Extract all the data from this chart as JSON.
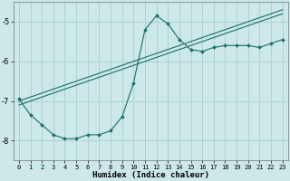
{
  "xlabel": "Humidex (Indice chaleur)",
  "bg_color": "#cce8e8",
  "line_color": "#1a6e6a",
  "grid_color": "#aacece",
  "x_data": [
    0,
    1,
    2,
    3,
    4,
    5,
    6,
    7,
    8,
    9,
    10,
    11,
    12,
    13,
    14,
    15,
    16,
    17,
    18,
    19,
    20,
    21,
    22,
    23
  ],
  "y_curve": [
    -6.95,
    -7.35,
    -7.6,
    -7.85,
    -7.95,
    -7.95,
    -7.85,
    -7.85,
    -7.75,
    -7.4,
    -6.55,
    -5.2,
    -4.85,
    -5.05,
    -5.45,
    -5.7,
    -5.75,
    -5.65,
    -5.6,
    -5.6,
    -5.6,
    -5.65,
    -5.55,
    -5.45
  ],
  "y_line1": [
    -7.0,
    -6.9,
    -6.8,
    -6.7,
    -6.6,
    -6.5,
    -6.4,
    -6.3,
    -6.2,
    -6.1,
    -6.0,
    -5.9,
    -5.8,
    -5.7,
    -5.6,
    -5.5,
    -5.4,
    -5.3,
    -5.2,
    -5.1,
    -5.0,
    -4.9,
    -4.8,
    -4.7
  ],
  "y_line2": [
    -7.1,
    -7.0,
    -6.9,
    -6.8,
    -6.7,
    -6.6,
    -6.5,
    -6.4,
    -6.3,
    -6.2,
    -6.1,
    -6.0,
    -5.9,
    -5.8,
    -5.7,
    -5.6,
    -5.5,
    -5.4,
    -5.3,
    -5.2,
    -5.1,
    -5.0,
    -4.9,
    -4.8
  ],
  "ylim": [
    -8.5,
    -4.5
  ],
  "yticks": [
    -8,
    -7,
    -6,
    -5
  ],
  "xlim": [
    -0.5,
    23.5
  ],
  "xticks": [
    0,
    1,
    2,
    3,
    4,
    5,
    6,
    7,
    8,
    9,
    10,
    11,
    12,
    13,
    14,
    15,
    16,
    17,
    18,
    19,
    20,
    21,
    22,
    23
  ]
}
